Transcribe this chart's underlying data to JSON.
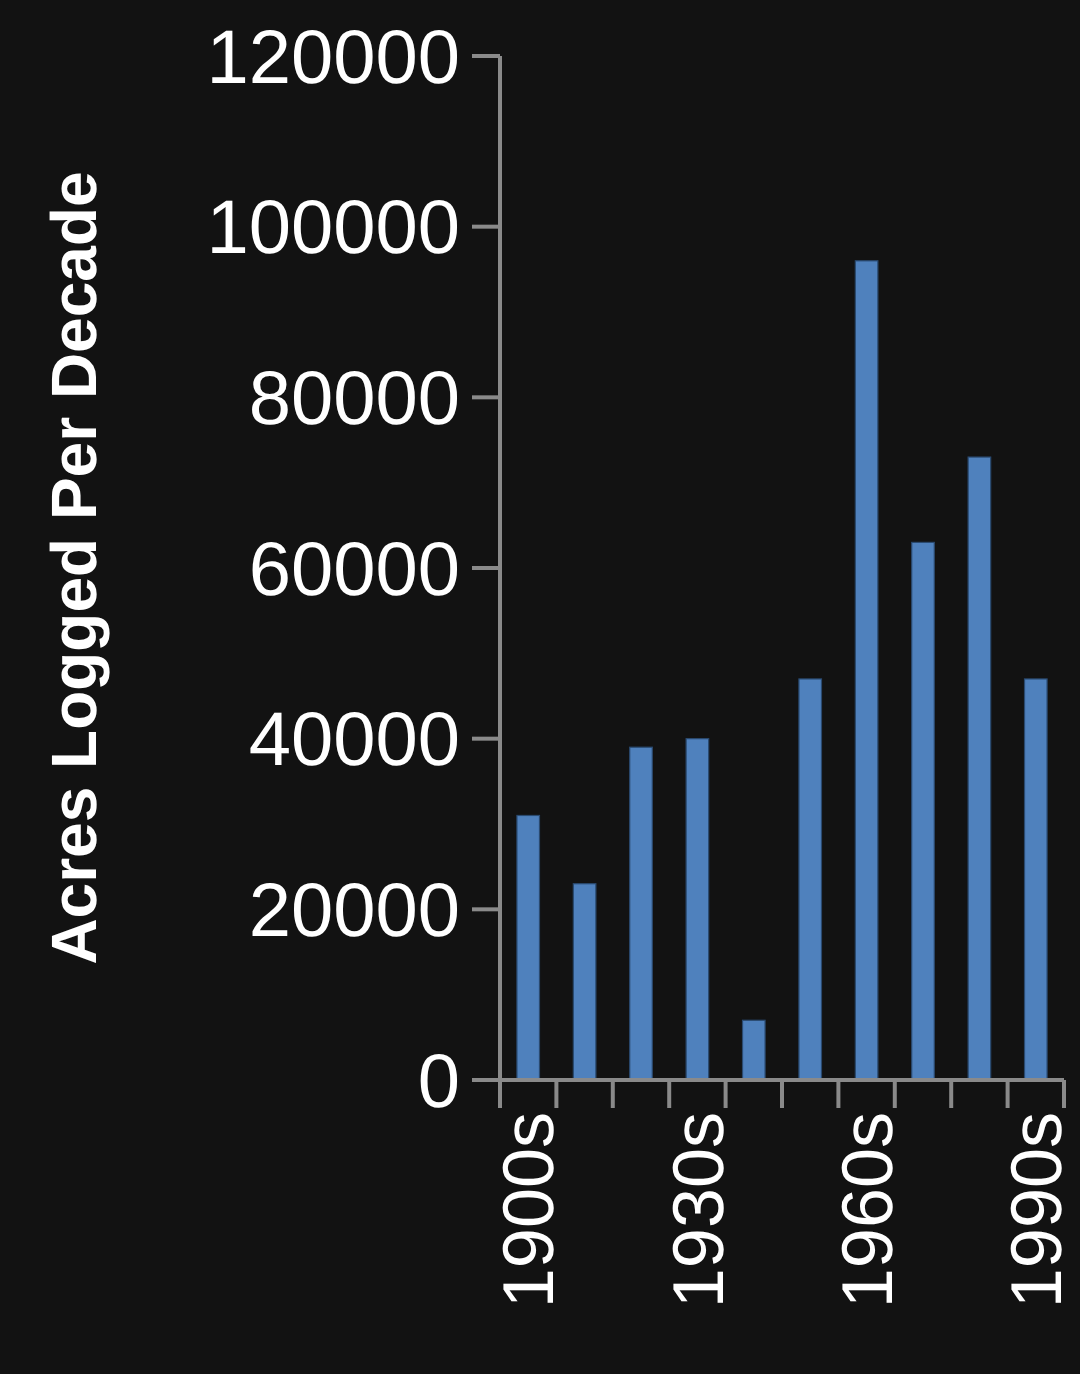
{
  "chart_data": {
    "type": "bar",
    "ylabel": "Acres Logged Per Decade",
    "categories": [
      "1900s",
      null,
      null,
      "1930s",
      null,
      null,
      "1960s",
      null,
      null,
      "1990s"
    ],
    "values": [
      31000,
      23000,
      39000,
      40000,
      7000,
      47000,
      96000,
      63000,
      73000,
      47000
    ],
    "color": "#4f81bd",
    "ylim": [
      0,
      120000
    ],
    "yticks": [
      0,
      20000,
      40000,
      60000,
      80000,
      100000,
      120000
    ],
    "grid": false
  }
}
